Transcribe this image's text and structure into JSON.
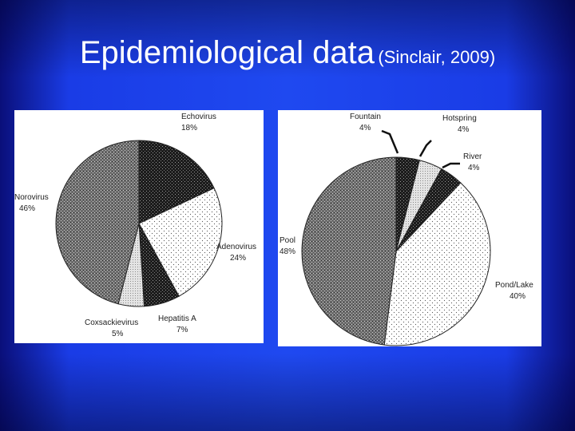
{
  "slide": {
    "title": "Epidemiological data",
    "subtitle": "(Sinclair, 2009)"
  },
  "chart_data": [
    {
      "type": "pie",
      "slices": [
        {
          "name": "Echovirus",
          "value": 18,
          "label": "18%",
          "pattern": "dense"
        },
        {
          "name": "Adenovirus",
          "value": 24,
          "label": "24%",
          "pattern": "sparse"
        },
        {
          "name": "Hepatitis A",
          "value": 7,
          "label": "7%",
          "pattern": "dense"
        },
        {
          "name": "Coxsackievirus",
          "value": 5,
          "label": "5%",
          "pattern": "light"
        },
        {
          "name": "Norovirus",
          "value": 46,
          "label": "46%",
          "pattern": "gray"
        }
      ]
    },
    {
      "type": "pie",
      "slices": [
        {
          "name": "Fountain",
          "value": 4,
          "label": "4%",
          "pattern": "dense"
        },
        {
          "name": "Hotspring",
          "value": 4,
          "label": "4%",
          "pattern": "light"
        },
        {
          "name": "River",
          "value": 4,
          "label": "4%",
          "pattern": "dense"
        },
        {
          "name": "Pond/Lake",
          "value": 40,
          "label": "40%",
          "pattern": "sparse"
        },
        {
          "name": "Pool",
          "value": 48,
          "label": "48%",
          "pattern": "gray"
        }
      ]
    }
  ]
}
